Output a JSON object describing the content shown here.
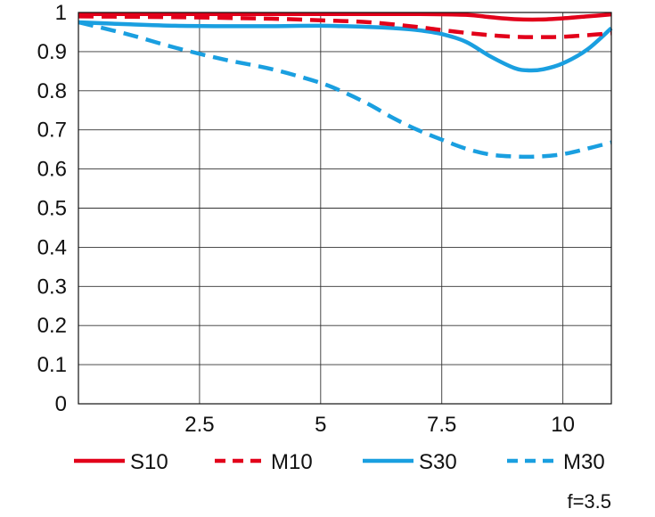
{
  "chart_data": {
    "type": "line",
    "title": "",
    "xlabel": "",
    "ylabel": "",
    "xlim": [
      0,
      11
    ],
    "ylim": [
      0,
      1
    ],
    "grid": true,
    "legend_position": "bottom",
    "x_ticks": [
      {
        "value": 2.5,
        "label": "2.5"
      },
      {
        "value": 5,
        "label": "5"
      },
      {
        "value": 7.5,
        "label": "7.5"
      },
      {
        "value": 10,
        "label": "10"
      }
    ],
    "y_ticks": [
      {
        "value": 0,
        "label": "0"
      },
      {
        "value": 0.1,
        "label": "0.1"
      },
      {
        "value": 0.2,
        "label": "0.2"
      },
      {
        "value": 0.3,
        "label": "0.3"
      },
      {
        "value": 0.4,
        "label": "0.4"
      },
      {
        "value": 0.5,
        "label": "0.5"
      },
      {
        "value": 0.6,
        "label": "0.6"
      },
      {
        "value": 0.7,
        "label": "0.7"
      },
      {
        "value": 0.8,
        "label": "0.8"
      },
      {
        "value": 0.9,
        "label": "0.9"
      },
      {
        "value": 1,
        "label": "1"
      }
    ],
    "annotation": "f=3.5",
    "series": [
      {
        "name": "S10",
        "color": "#e2001a",
        "dashed": false,
        "x": [
          0,
          2,
          4,
          6,
          7,
          8,
          8.5,
          9,
          9.5,
          10,
          10.5,
          11
        ],
        "y": [
          0.996,
          0.996,
          0.996,
          0.996,
          0.996,
          0.994,
          0.988,
          0.983,
          0.982,
          0.985,
          0.99,
          0.995
        ]
      },
      {
        "name": "M10",
        "color": "#e2001a",
        "dashed": true,
        "x": [
          0,
          2,
          4,
          5,
          6,
          7,
          7.5,
          8,
          8.5,
          9,
          9.5,
          10,
          10.5,
          11
        ],
        "y": [
          0.99,
          0.988,
          0.984,
          0.98,
          0.975,
          0.963,
          0.955,
          0.948,
          0.942,
          0.938,
          0.937,
          0.938,
          0.942,
          0.947
        ]
      },
      {
        "name": "S30",
        "color": "#1a9fe0",
        "dashed": false,
        "x": [
          0,
          1,
          2,
          3,
          4,
          5,
          6,
          6.5,
          7,
          7.5,
          8,
          8.5,
          9,
          9.3,
          9.6,
          10,
          10.5,
          11
        ],
        "y": [
          0.975,
          0.97,
          0.966,
          0.965,
          0.965,
          0.966,
          0.963,
          0.96,
          0.955,
          0.945,
          0.925,
          0.888,
          0.858,
          0.852,
          0.855,
          0.87,
          0.905,
          0.96
        ]
      },
      {
        "name": "M30",
        "color": "#1a9fe0",
        "dashed": true,
        "x": [
          0,
          1,
          2,
          3,
          4,
          5,
          5.5,
          6,
          6.5,
          7,
          7.5,
          8,
          8.5,
          9,
          9.5,
          10,
          10.5,
          11
        ],
        "y": [
          0.975,
          0.945,
          0.91,
          0.88,
          0.855,
          0.82,
          0.795,
          0.765,
          0.73,
          0.7,
          0.675,
          0.652,
          0.637,
          0.632,
          0.632,
          0.638,
          0.652,
          0.668
        ]
      }
    ]
  }
}
